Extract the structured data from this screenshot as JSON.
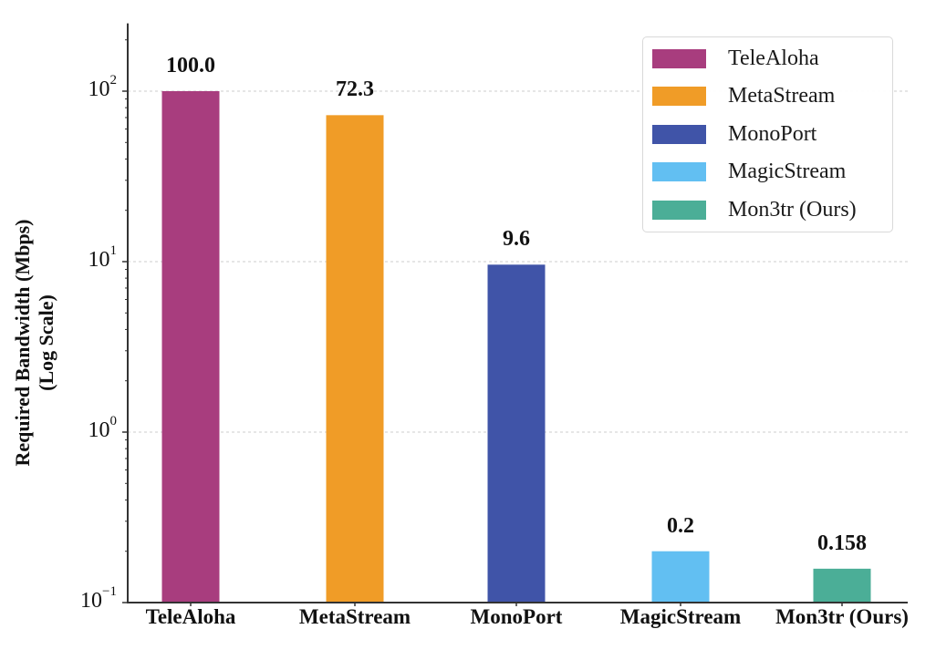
{
  "chart_data": {
    "type": "bar",
    "title": "",
    "xlabel": "",
    "ylabel": "Required Bandwidth (Mbps) (Log Scale)",
    "ylabel_lines": [
      "Required Bandwidth (Mbps)",
      "(Log Scale)"
    ],
    "yscale": "log",
    "ylim": [
      0.1,
      250
    ],
    "yticks": [
      0.1,
      1,
      10,
      100
    ],
    "ytick_labels": [
      {
        "base": "10",
        "exp": "−1"
      },
      {
        "base": "10",
        "exp": "0"
      },
      {
        "base": "10",
        "exp": "1"
      },
      {
        "base": "10",
        "exp": "2"
      }
    ],
    "grid": "horizontal dashed at major ticks",
    "categories": [
      "TeleAloha",
      "MetaStream",
      "MonoPort",
      "MagicStream",
      "Mon3tr (Ours)"
    ],
    "values": [
      100.0,
      72.3,
      9.6,
      0.2,
      0.158
    ],
    "value_labels": [
      "100.0",
      "72.3",
      "9.6",
      "0.2",
      "0.158"
    ],
    "colors": [
      "#a83d7e",
      "#f09c27",
      "#4054a8",
      "#62bff2",
      "#4bae97"
    ],
    "legend": {
      "position": "upper right",
      "entries": [
        "TeleAloha",
        "MetaStream",
        "MonoPort",
        "MagicStream",
        "Mon3tr (Ours)"
      ]
    }
  }
}
